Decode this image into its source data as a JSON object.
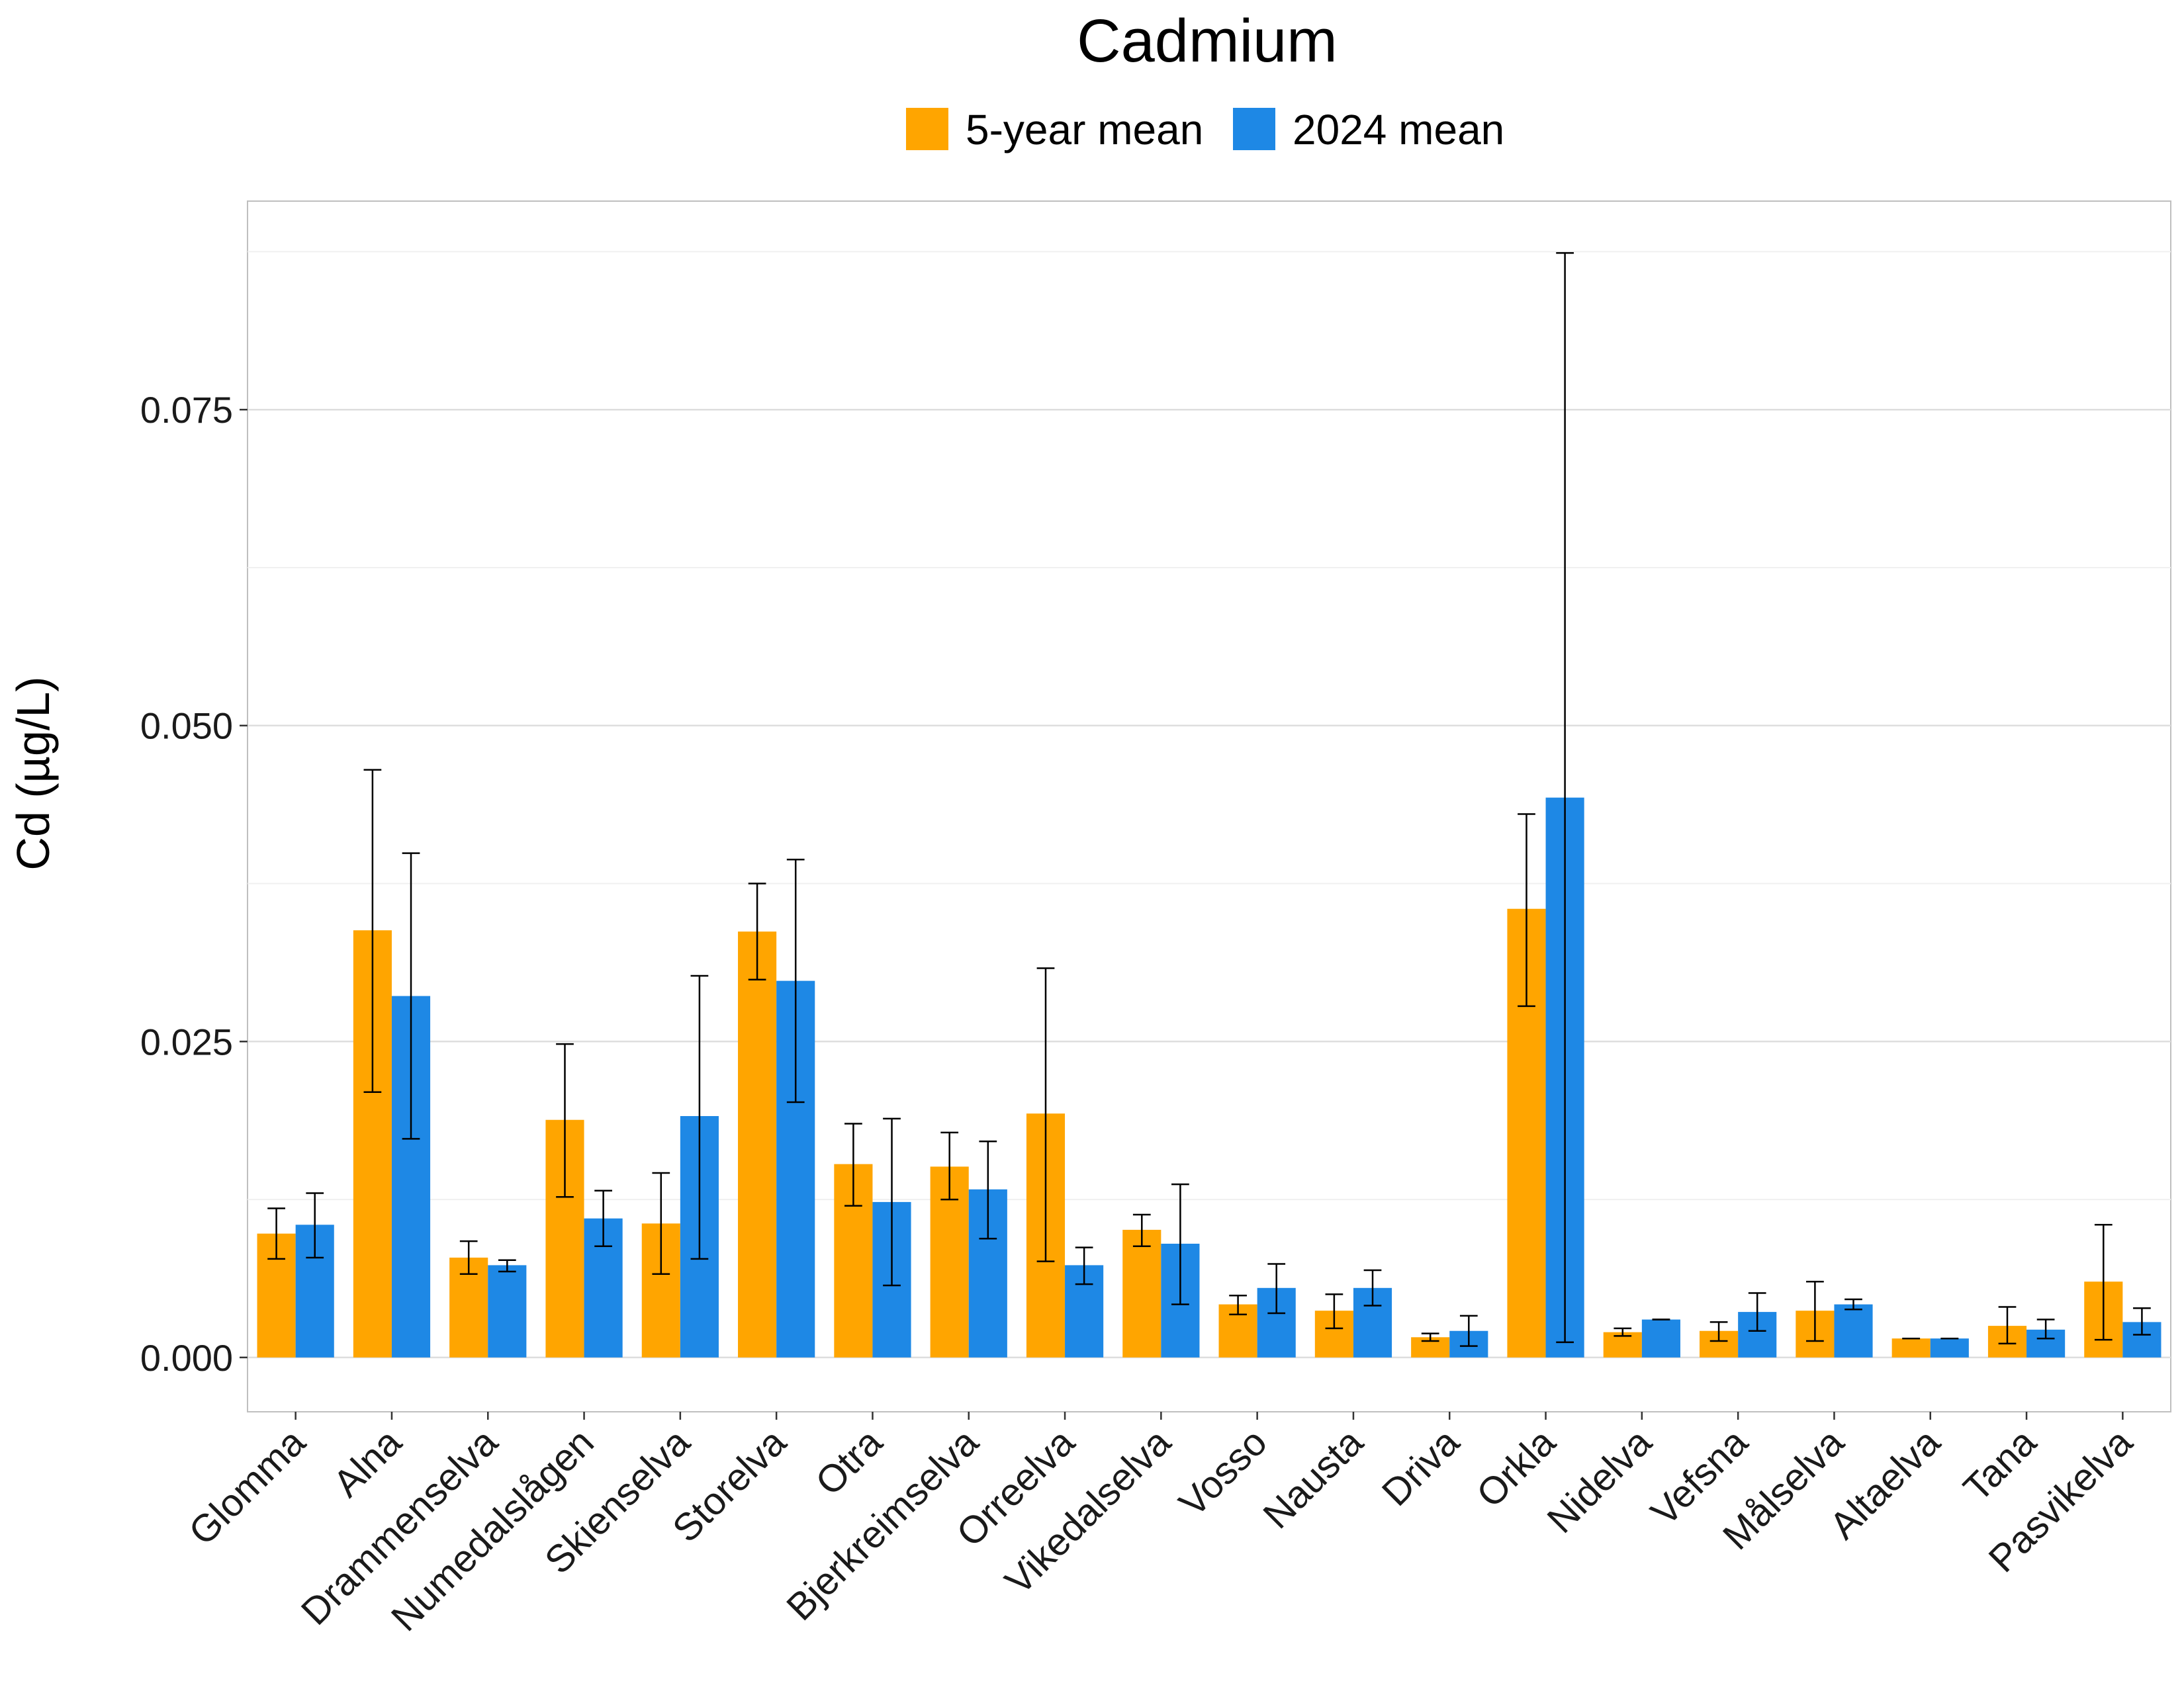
{
  "chart_data": {
    "type": "bar",
    "title": "Cadmium",
    "xlabel": "",
    "ylabel": "Cd (µg/L)",
    "ylim": [
      -0.0043,
      0.0915
    ],
    "y_ticks": [
      "0.000",
      "0.025",
      "0.050",
      "0.075"
    ],
    "y_tick_values": [
      0,
      0.025,
      0.05,
      0.075
    ],
    "grid": true,
    "legend_position": "top",
    "categories": [
      "Glomma",
      "Alna",
      "Drammenselva",
      "Numedalslågen",
      "Skienselva",
      "Storelva",
      "Otra",
      "Bjerkreimselva",
      "Orreelva",
      "Vikedalselva",
      "Vosso",
      "Nausta",
      "Driva",
      "Orkla",
      "Nidelva",
      "Vefsna",
      "Målselva",
      "Altaelva",
      "Tana",
      "Pasvikelva"
    ],
    "series": [
      {
        "name": "5-year mean",
        "color": "#FFA500",
        "values": [
          0.0098,
          0.0338,
          0.0079,
          0.0188,
          0.0106,
          0.0337,
          0.0153,
          0.0151,
          0.0193,
          0.0101,
          0.0042,
          0.0037,
          0.0016,
          0.0355,
          0.002,
          0.0021,
          0.0037,
          0.0015,
          0.0025,
          0.006
        ],
        "err_low": [
          0.0078,
          0.021,
          0.0066,
          0.0127,
          0.0066,
          0.0299,
          0.012,
          0.0125,
          0.0076,
          0.0088,
          0.0034,
          0.0023,
          0.0013,
          0.0278,
          0.0017,
          0.0013,
          0.0013,
          0.0015,
          0.0011,
          0.0014
        ],
        "err_high": [
          0.0118,
          0.0465,
          0.0092,
          0.0248,
          0.0146,
          0.0375,
          0.0185,
          0.0178,
          0.0308,
          0.0113,
          0.0049,
          0.005,
          0.0019,
          0.043,
          0.0023,
          0.0028,
          0.006,
          0.0015,
          0.004,
          0.0105
        ]
      },
      {
        "name": "2024 mean",
        "color": "#1E88E5",
        "values": [
          0.0105,
          0.0286,
          0.0073,
          0.011,
          0.0191,
          0.0298,
          0.0123,
          0.0133,
          0.0073,
          0.009,
          0.0055,
          0.0055,
          0.0021,
          0.0443,
          0.003,
          0.0036,
          0.0042,
          0.0015,
          0.0022,
          0.0028
        ],
        "err_low": [
          0.0079,
          0.0173,
          0.0068,
          0.0088,
          0.0078,
          0.0202,
          0.0057,
          0.0094,
          0.0058,
          0.0042,
          0.0035,
          0.0041,
          0.0009,
          0.0012,
          0.003,
          0.0021,
          0.0038,
          0.0015,
          0.0015,
          0.0018
        ],
        "err_high": [
          0.013,
          0.0399,
          0.0077,
          0.0132,
          0.0302,
          0.0394,
          0.0189,
          0.0171,
          0.0087,
          0.0137,
          0.0074,
          0.0069,
          0.0033,
          0.0874,
          0.003,
          0.0051,
          0.0046,
          0.0015,
          0.003,
          0.0039
        ]
      }
    ]
  }
}
